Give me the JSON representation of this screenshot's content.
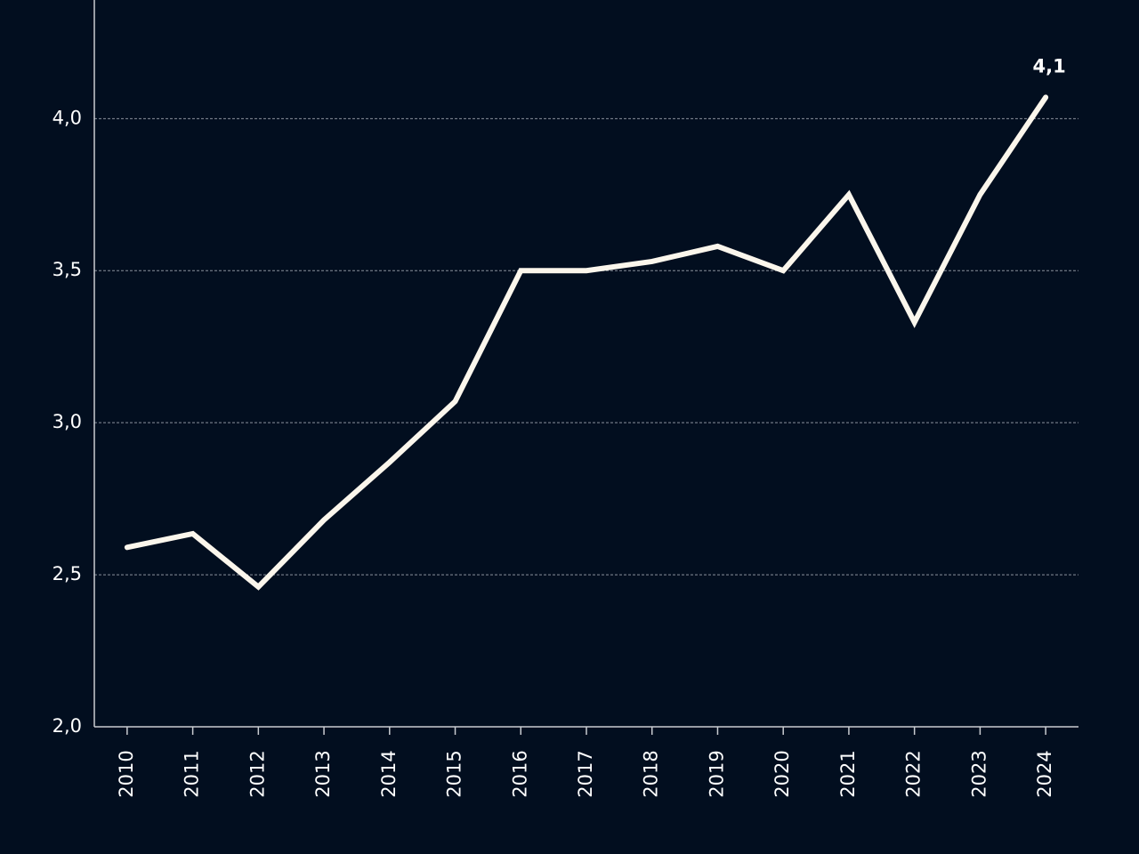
{
  "chart_data": {
    "type": "line",
    "categories": [
      "2010",
      "2011",
      "2012",
      "2013",
      "2014",
      "2015",
      "2016",
      "2017",
      "2018",
      "2019",
      "2020",
      "2021",
      "2022",
      "2023",
      "2024"
    ],
    "series": [
      {
        "color": "#fbf6ec",
        "values": [
          2.59,
          2.635,
          2.46,
          2.68,
          2.87,
          3.07,
          3.5,
          3.5,
          3.53,
          3.58,
          3.5,
          3.75,
          3.33,
          3.75,
          4.07
        ],
        "value_labels": [
          null,
          null,
          null,
          null,
          null,
          null,
          null,
          null,
          null,
          null,
          null,
          null,
          null,
          null,
          "4,1"
        ]
      }
    ],
    "ylim": [
      2.0,
      4.39
    ],
    "yticks": [
      {
        "value": 2.0,
        "label": "2,0"
      },
      {
        "value": 2.5,
        "label": "2,5"
      },
      {
        "value": 3.0,
        "label": "3,0"
      },
      {
        "value": 3.5,
        "label": "3,5"
      },
      {
        "value": 4.0,
        "label": "4,0"
      }
    ],
    "grid": true
  }
}
